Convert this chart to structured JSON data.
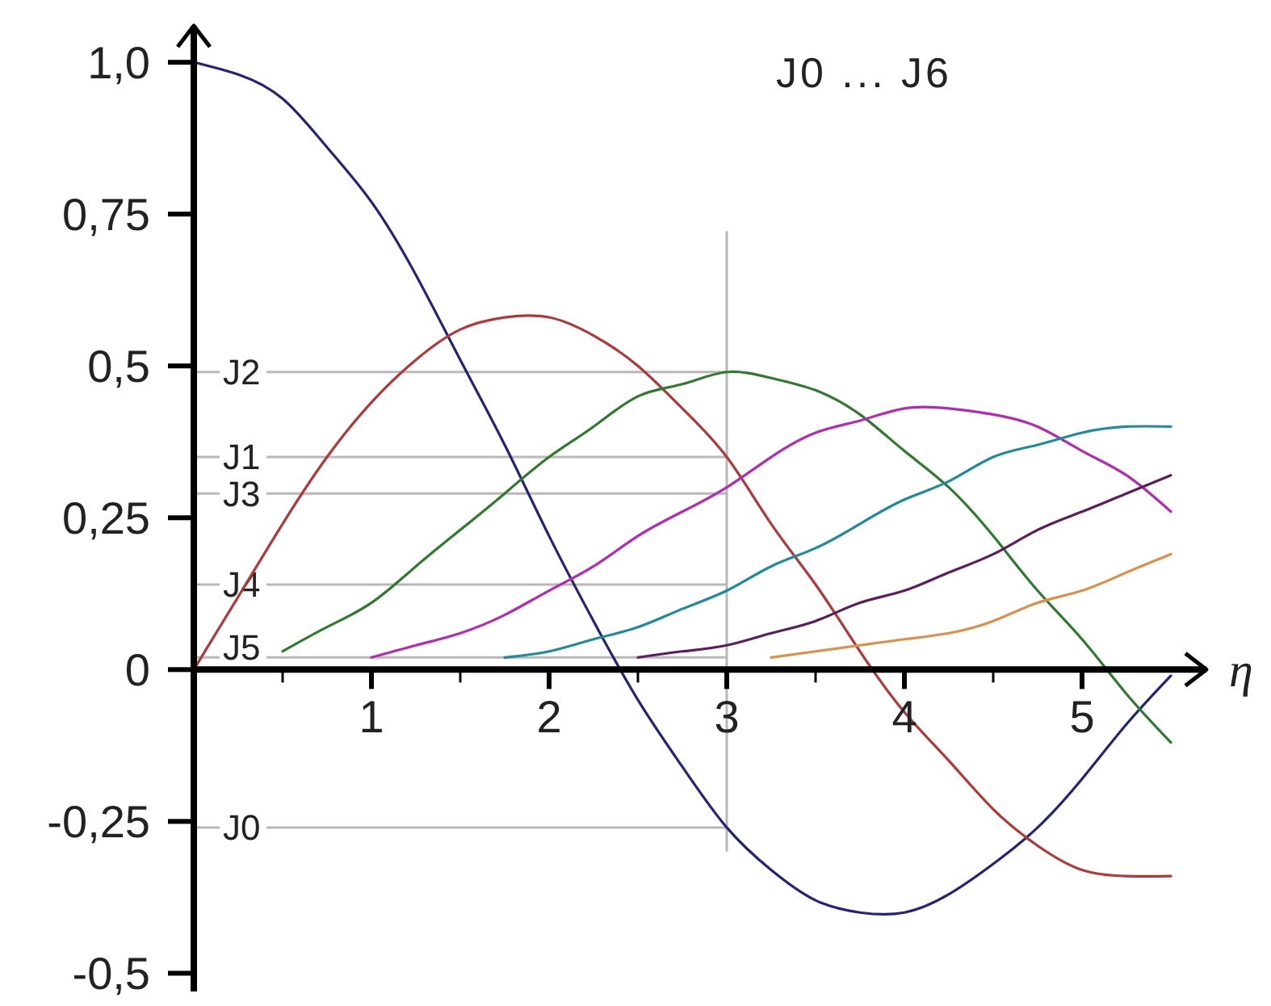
{
  "chart_data": {
    "type": "line",
    "title": "J0 ... J6",
    "xlabel": "η",
    "xlim": [
      0,
      5.7
    ],
    "ylim": [
      -0.53,
      1.06
    ],
    "xticks": [
      {
        "value": 0.5,
        "label": null
      },
      1,
      {
        "value": 1.5,
        "label": null
      },
      2,
      {
        "value": 2.5,
        "label": null
      },
      3,
      {
        "value": 3.5,
        "label": null
      },
      4,
      {
        "value": 4.5,
        "label": null
      },
      5
    ],
    "yticks": [
      {
        "value": -0.5,
        "label": "-0,5"
      },
      {
        "value": -0.25,
        "label": "-0,25"
      },
      0,
      {
        "value": 0.25,
        "label": "0,25"
      },
      {
        "value": 0.5,
        "label": "0,5"
      },
      {
        "value": 0.75,
        "label": "0,75"
      },
      {
        "value": 1,
        "label": "1,0"
      }
    ],
    "series": [
      {
        "color": "#23237a",
        "x": [
          0,
          0.25,
          0.5,
          0.75,
          1,
          1.25,
          1.5,
          1.75,
          2,
          2.25,
          2.5,
          2.75,
          3,
          3.25,
          3.5,
          3.75,
          4,
          4.25,
          4.5,
          4.75,
          5,
          5.25,
          5.5
        ],
        "values": [
          1.0,
          0.98,
          0.94,
          0.86,
          0.77,
          0.65,
          0.51,
          0.37,
          0.22,
          0.08,
          -0.05,
          -0.16,
          -0.26,
          -0.33,
          -0.38,
          -0.4,
          -0.4,
          -0.37,
          -0.32,
          -0.26,
          -0.18,
          -0.09,
          -0.01
        ]
      },
      {
        "color": "#b03838",
        "x": [
          0,
          0.25,
          0.5,
          0.75,
          1,
          1.25,
          1.5,
          1.75,
          2,
          2.25,
          2.5,
          2.75,
          3,
          3.25,
          3.5,
          3.75,
          4,
          4.25,
          4.5,
          4.75,
          5,
          5.25,
          5.5
        ],
        "values": [
          0,
          0.12,
          0.24,
          0.35,
          0.44,
          0.51,
          0.56,
          0.58,
          0.58,
          0.55,
          0.5,
          0.43,
          0.35,
          0.24,
          0.14,
          0.03,
          -0.07,
          -0.15,
          -0.23,
          -0.29,
          -0.33,
          -0.34,
          -0.34
        ]
      },
      {
        "color": "#2f7a2f",
        "x": [
          0.5,
          0.75,
          1,
          1.25,
          1.5,
          1.75,
          2,
          2.25,
          2.5,
          2.75,
          3,
          3.25,
          3.5,
          3.75,
          4,
          4.25,
          4.5,
          4.75,
          5,
          5.25,
          5.5
        ],
        "values": [
          0.03,
          0.07,
          0.11,
          0.17,
          0.23,
          0.29,
          0.35,
          0.4,
          0.45,
          0.47,
          0.49,
          0.48,
          0.46,
          0.42,
          0.36,
          0.3,
          0.22,
          0.13,
          0.05,
          -0.04,
          -0.12
        ]
      },
      {
        "color": "#b02cb0",
        "x": [
          1,
          1.25,
          1.5,
          1.75,
          2,
          2.25,
          2.5,
          2.75,
          3,
          3.25,
          3.5,
          3.75,
          4,
          4.25,
          4.5,
          4.75,
          5,
          5.25,
          5.5
        ],
        "values": [
          0.02,
          0.04,
          0.06,
          0.09,
          0.13,
          0.17,
          0.22,
          0.26,
          0.3,
          0.35,
          0.39,
          0.41,
          0.43,
          0.43,
          0.42,
          0.4,
          0.36,
          0.32,
          0.26
        ]
      },
      {
        "color": "#1f8a99",
        "x": [
          1.75,
          2,
          2.25,
          2.5,
          2.75,
          3,
          3.25,
          3.5,
          3.75,
          4,
          4.25,
          4.5,
          4.75,
          5,
          5.25,
          5.5
        ],
        "values": [
          0.02,
          0.03,
          0.05,
          0.07,
          0.1,
          0.13,
          0.17,
          0.2,
          0.24,
          0.28,
          0.31,
          0.35,
          0.37,
          0.39,
          0.4,
          0.4
        ]
      },
      {
        "color": "#5c1d5c",
        "x": [
          2.5,
          2.75,
          3,
          3.25,
          3.5,
          3.75,
          4,
          4.25,
          4.5,
          4.75,
          5,
          5.25,
          5.5
        ],
        "values": [
          0.02,
          0.03,
          0.04,
          0.06,
          0.08,
          0.11,
          0.13,
          0.16,
          0.19,
          0.23,
          0.26,
          0.29,
          0.32
        ]
      },
      {
        "color": "#d9904a",
        "x": [
          3.25,
          3.5,
          3.75,
          4,
          4.25,
          4.5,
          4.75,
          5,
          5.25,
          5.5
        ],
        "values": [
          0.02,
          0.03,
          0.04,
          0.05,
          0.06,
          0.08,
          0.11,
          0.13,
          0.16,
          0.19
        ]
      }
    ],
    "ref_lines": [
      {
        "axis": "y",
        "value": 0.49,
        "label": "J2",
        "color": "#b8b8b8"
      },
      {
        "axis": "y",
        "value": 0.35,
        "label": "J1",
        "color": "#b8b8b8"
      },
      {
        "axis": "y",
        "value": 0.29,
        "label": "J3",
        "color": "#b8b8b8"
      },
      {
        "axis": "y",
        "value": 0.14,
        "label": "J4",
        "color": "#b8b8b8"
      },
      {
        "axis": "y",
        "value": 0.02,
        "label": "J5",
        "color": "#b8b8b8"
      },
      {
        "axis": "y",
        "value": -0.26,
        "label": "J0",
        "color": "#b8b8b8"
      },
      {
        "axis": "x",
        "value": 3,
        "color": "#b8b8b8"
      }
    ]
  }
}
